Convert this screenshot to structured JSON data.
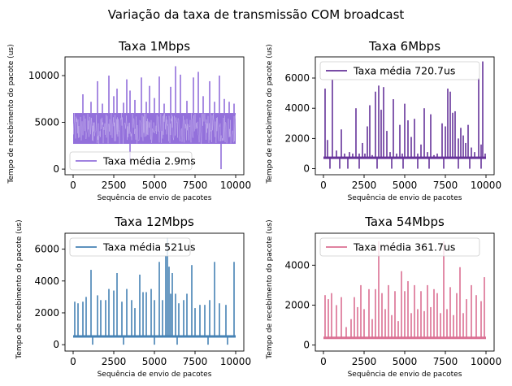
{
  "figure": {
    "suptitle": "Variação da taxa de transmissão COM broadcast"
  },
  "chart_data": [
    {
      "type": "line",
      "title": "Taxa 1Mbps",
      "xlabel": "Sequência de envio de pacotes",
      "ylabel": "Tempo de recebimento do pacote (us)",
      "xlim": [
        -500,
        10500
      ],
      "ylim": [
        -600,
        12000
      ],
      "xticks": [
        0,
        2500,
        5000,
        7500,
        10000
      ],
      "xtick_labels": [
        "0",
        "2500",
        "5000",
        "7500",
        "10000"
      ],
      "yticks": [
        0,
        5000,
        10000
      ],
      "ytick_labels": [
        "0",
        "5000",
        "10000"
      ],
      "legend_loc": "lower-left",
      "series": [
        {
          "name": "Taxa média 2.9ms",
          "color": "#9370db",
          "pattern": "band",
          "base": 2900,
          "band_low": 2700,
          "band_high": 6000,
          "spikes": [
            {
              "x": 600,
              "y": 8000
            },
            {
              "x": 1100,
              "y": 7200
            },
            {
              "x": 1500,
              "y": 9400
            },
            {
              "x": 1800,
              "y": 7000
            },
            {
              "x": 2200,
              "y": 10000
            },
            {
              "x": 2500,
              "y": 7800
            },
            {
              "x": 2700,
              "y": 8600
            },
            {
              "x": 3100,
              "y": 7100
            },
            {
              "x": 3300,
              "y": 9600
            },
            {
              "x": 3500,
              "y": 8400
            },
            {
              "x": 3800,
              "y": 7400
            },
            {
              "x": 4200,
              "y": 9800
            },
            {
              "x": 4500,
              "y": 7200
            },
            {
              "x": 4700,
              "y": 8900
            },
            {
              "x": 5000,
              "y": 7600
            },
            {
              "x": 5300,
              "y": 9900
            },
            {
              "x": 5600,
              "y": 7000
            },
            {
              "x": 6000,
              "y": 8800
            },
            {
              "x": 6300,
              "y": 11000
            },
            {
              "x": 6600,
              "y": 10100
            },
            {
              "x": 7000,
              "y": 7300
            },
            {
              "x": 7400,
              "y": 9800
            },
            {
              "x": 7700,
              "y": 10400
            },
            {
              "x": 8000,
              "y": 7800
            },
            {
              "x": 8400,
              "y": 9400
            },
            {
              "x": 8700,
              "y": 7200
            },
            {
              "x": 9000,
              "y": 10000
            },
            {
              "x": 9300,
              "y": 7500
            },
            {
              "x": 9600,
              "y": 7200
            },
            {
              "x": 9900,
              "y": 7000
            }
          ],
          "dips": [
            {
              "x": 3500,
              "y": 700
            },
            {
              "x": 9100,
              "y": 0
            }
          ]
        }
      ]
    },
    {
      "type": "line",
      "title": "Taxa 6Mbps",
      "xlabel": "Sequência de envio de pacotes",
      "ylabel": "Tempo de recebimento do pacote (us)",
      "xlim": [
        -500,
        10500
      ],
      "ylim": [
        -400,
        7400
      ],
      "xticks": [
        0,
        2500,
        5000,
        7500,
        10000
      ],
      "xtick_labels": [
        "0",
        "2500",
        "5000",
        "7500",
        "10000"
      ],
      "yticks": [
        0,
        2000,
        4000,
        6000
      ],
      "ytick_labels": [
        "0",
        "2000",
        "4000",
        "6000"
      ],
      "legend_loc": "upper-left",
      "series": [
        {
          "name": "Taxa média 720.7us",
          "color": "#663399",
          "pattern": "spikes",
          "base": 720,
          "spikes": [
            {
              "x": 100,
              "y": 5300
            },
            {
              "x": 250,
              "y": 1900
            },
            {
              "x": 550,
              "y": 5900
            },
            {
              "x": 800,
              "y": 1200
            },
            {
              "x": 1100,
              "y": 2600
            },
            {
              "x": 1300,
              "y": 1000
            },
            {
              "x": 1600,
              "y": 1100
            },
            {
              "x": 1800,
              "y": 1000
            },
            {
              "x": 2000,
              "y": 4000
            },
            {
              "x": 2200,
              "y": 1000
            },
            {
              "x": 2400,
              "y": 1700
            },
            {
              "x": 2550,
              "y": 1000
            },
            {
              "x": 2700,
              "y": 2800
            },
            {
              "x": 2850,
              "y": 4200
            },
            {
              "x": 3000,
              "y": 900
            },
            {
              "x": 3200,
              "y": 5100
            },
            {
              "x": 3400,
              "y": 5500
            },
            {
              "x": 3550,
              "y": 3900
            },
            {
              "x": 3700,
              "y": 5400
            },
            {
              "x": 3900,
              "y": 2500
            },
            {
              "x": 4100,
              "y": 1100
            },
            {
              "x": 4300,
              "y": 4600
            },
            {
              "x": 4500,
              "y": 1000
            },
            {
              "x": 4700,
              "y": 2900
            },
            {
              "x": 4850,
              "y": 1000
            },
            {
              "x": 5000,
              "y": 4300
            },
            {
              "x": 5200,
              "y": 3200
            },
            {
              "x": 5400,
              "y": 2100
            },
            {
              "x": 5600,
              "y": 3300
            },
            {
              "x": 5800,
              "y": 1000
            },
            {
              "x": 6000,
              "y": 1600
            },
            {
              "x": 6200,
              "y": 4000
            },
            {
              "x": 6400,
              "y": 1100
            },
            {
              "x": 6600,
              "y": 3600
            },
            {
              "x": 6800,
              "y": 900
            },
            {
              "x": 7000,
              "y": 1000
            },
            {
              "x": 7300,
              "y": 3000
            },
            {
              "x": 7500,
              "y": 2800
            },
            {
              "x": 7650,
              "y": 5300
            },
            {
              "x": 7800,
              "y": 5100
            },
            {
              "x": 7950,
              "y": 3700
            },
            {
              "x": 8100,
              "y": 3800
            },
            {
              "x": 8300,
              "y": 2000
            },
            {
              "x": 8450,
              "y": 2700
            },
            {
              "x": 8600,
              "y": 2200
            },
            {
              "x": 8750,
              "y": 1700
            },
            {
              "x": 8900,
              "y": 2900
            },
            {
              "x": 9100,
              "y": 1400
            },
            {
              "x": 9300,
              "y": 1100
            },
            {
              "x": 9550,
              "y": 6000
            },
            {
              "x": 9700,
              "y": 1600
            },
            {
              "x": 9800,
              "y": 7100
            },
            {
              "x": 9950,
              "y": 1000
            }
          ],
          "dips": [
            {
              "x": 400,
              "y": 0
            },
            {
              "x": 1000,
              "y": 0
            },
            {
              "x": 1500,
              "y": 0
            },
            {
              "x": 2200,
              "y": 0
            },
            {
              "x": 3300,
              "y": 0
            },
            {
              "x": 4200,
              "y": 0
            },
            {
              "x": 4900,
              "y": 0
            },
            {
              "x": 5800,
              "y": 0
            },
            {
              "x": 6500,
              "y": 0
            },
            {
              "x": 7400,
              "y": 0
            },
            {
              "x": 8300,
              "y": 0
            },
            {
              "x": 9000,
              "y": 0
            },
            {
              "x": 9700,
              "y": 0
            }
          ]
        }
      ]
    },
    {
      "type": "line",
      "title": "Taxa 12Mbps",
      "xlabel": "Sequência de envio de pacotes",
      "ylabel": "Tempo de recebimento do pacote (us)",
      "xlim": [
        -500,
        10500
      ],
      "ylim": [
        -400,
        7000
      ],
      "xticks": [
        0,
        2500,
        5000,
        7500,
        10000
      ],
      "xtick_labels": [
        "0",
        "2500",
        "5000",
        "7500",
        "10000"
      ],
      "yticks": [
        0,
        2000,
        4000,
        6000
      ],
      "ytick_labels": [
        "0",
        "2000",
        "4000",
        "6000"
      ],
      "legend_loc": "upper-left",
      "series": [
        {
          "name": "Taxa média 521us",
          "color": "#4682b4",
          "pattern": "spikes",
          "base": 520,
          "spikes": [
            {
              "x": 100,
              "y": 2700
            },
            {
              "x": 300,
              "y": 2600
            },
            {
              "x": 600,
              "y": 2700
            },
            {
              "x": 800,
              "y": 3000
            },
            {
              "x": 1100,
              "y": 4700
            },
            {
              "x": 1500,
              "y": 3100
            },
            {
              "x": 1700,
              "y": 2800
            },
            {
              "x": 2000,
              "y": 2800
            },
            {
              "x": 2200,
              "y": 3500
            },
            {
              "x": 2500,
              "y": 3400
            },
            {
              "x": 2700,
              "y": 4500
            },
            {
              "x": 3000,
              "y": 2700
            },
            {
              "x": 3300,
              "y": 3500
            },
            {
              "x": 3600,
              "y": 2800
            },
            {
              "x": 3800,
              "y": 2300
            },
            {
              "x": 4100,
              "y": 4400
            },
            {
              "x": 4300,
              "y": 3300
            },
            {
              "x": 4500,
              "y": 3300
            },
            {
              "x": 4800,
              "y": 3500
            },
            {
              "x": 5000,
              "y": 2800
            },
            {
              "x": 5300,
              "y": 5200
            },
            {
              "x": 5500,
              "y": 2800
            },
            {
              "x": 5700,
              "y": 5600
            },
            {
              "x": 5800,
              "y": 6700
            },
            {
              "x": 5900,
              "y": 4900
            },
            {
              "x": 6000,
              "y": 3200
            },
            {
              "x": 6100,
              "y": 4500
            },
            {
              "x": 6300,
              "y": 3200
            },
            {
              "x": 6500,
              "y": 2600
            },
            {
              "x": 6800,
              "y": 2800
            },
            {
              "x": 7000,
              "y": 3200
            },
            {
              "x": 7300,
              "y": 5000
            },
            {
              "x": 7500,
              "y": 2300
            },
            {
              "x": 7800,
              "y": 2500
            },
            {
              "x": 8100,
              "y": 2500
            },
            {
              "x": 8400,
              "y": 2800
            },
            {
              "x": 8700,
              "y": 5200
            },
            {
              "x": 9000,
              "y": 2600
            },
            {
              "x": 9400,
              "y": 2500
            },
            {
              "x": 9900,
              "y": 5200
            }
          ],
          "dips": [
            {
              "x": 1200,
              "y": 0
            },
            {
              "x": 3100,
              "y": 0
            },
            {
              "x": 5000,
              "y": 0
            },
            {
              "x": 6400,
              "y": 0
            },
            {
              "x": 8300,
              "y": 0
            },
            {
              "x": 9500,
              "y": 0
            }
          ]
        }
      ]
    },
    {
      "type": "line",
      "title": "Taxa 54Mbps",
      "xlabel": "Sequência de envio de pacotes",
      "ylabel": "Tempo de recebimento do pacote (us)",
      "xlim": [
        -500,
        10500
      ],
      "ylim": [
        -300,
        5600
      ],
      "xticks": [
        0,
        2500,
        5000,
        7500,
        10000
      ],
      "xtick_labels": [
        "0",
        "2500",
        "5000",
        "7500",
        "10000"
      ],
      "yticks": [
        0,
        2000,
        4000
      ],
      "ytick_labels": [
        "0",
        "2000",
        "4000"
      ],
      "legend_loc": "upper-left",
      "series": [
        {
          "name": "Taxa média 361.7us",
          "color": "#db7093",
          "pattern": "spikes",
          "base": 360,
          "spikes": [
            {
              "x": 100,
              "y": 2500
            },
            {
              "x": 300,
              "y": 2300
            },
            {
              "x": 500,
              "y": 2600
            },
            {
              "x": 800,
              "y": 2000
            },
            {
              "x": 1100,
              "y": 2400
            },
            {
              "x": 1400,
              "y": 900
            },
            {
              "x": 1700,
              "y": 1300
            },
            {
              "x": 1900,
              "y": 2400
            },
            {
              "x": 2100,
              "y": 1900
            },
            {
              "x": 2300,
              "y": 3000
            },
            {
              "x": 2500,
              "y": 1800
            },
            {
              "x": 2800,
              "y": 2800
            },
            {
              "x": 3000,
              "y": 1300
            },
            {
              "x": 3200,
              "y": 2800
            },
            {
              "x": 3400,
              "y": 5200
            },
            {
              "x": 3600,
              "y": 2600
            },
            {
              "x": 3800,
              "y": 1800
            },
            {
              "x": 4000,
              "y": 3000
            },
            {
              "x": 4200,
              "y": 1500
            },
            {
              "x": 4400,
              "y": 2700
            },
            {
              "x": 4600,
              "y": 1200
            },
            {
              "x": 4800,
              "y": 3700
            },
            {
              "x": 5000,
              "y": 2700
            },
            {
              "x": 5200,
              "y": 3200
            },
            {
              "x": 5400,
              "y": 1600
            },
            {
              "x": 5600,
              "y": 3000
            },
            {
              "x": 5800,
              "y": 1800
            },
            {
              "x": 6000,
              "y": 2700
            },
            {
              "x": 6200,
              "y": 1700
            },
            {
              "x": 6400,
              "y": 3000
            },
            {
              "x": 6600,
              "y": 1900
            },
            {
              "x": 6800,
              "y": 2800
            },
            {
              "x": 7000,
              "y": 2600
            },
            {
              "x": 7200,
              "y": 1600
            },
            {
              "x": 7400,
              "y": 5200
            },
            {
              "x": 7600,
              "y": 1800
            },
            {
              "x": 7800,
              "y": 2900
            },
            {
              "x": 8000,
              "y": 1500
            },
            {
              "x": 8200,
              "y": 2600
            },
            {
              "x": 8400,
              "y": 3900
            },
            {
              "x": 8600,
              "y": 1600
            },
            {
              "x": 8800,
              "y": 2300
            },
            {
              "x": 9100,
              "y": 3000
            },
            {
              "x": 9400,
              "y": 2500
            },
            {
              "x": 9700,
              "y": 2200
            },
            {
              "x": 9900,
              "y": 3400
            }
          ],
          "dips": []
        }
      ]
    }
  ]
}
